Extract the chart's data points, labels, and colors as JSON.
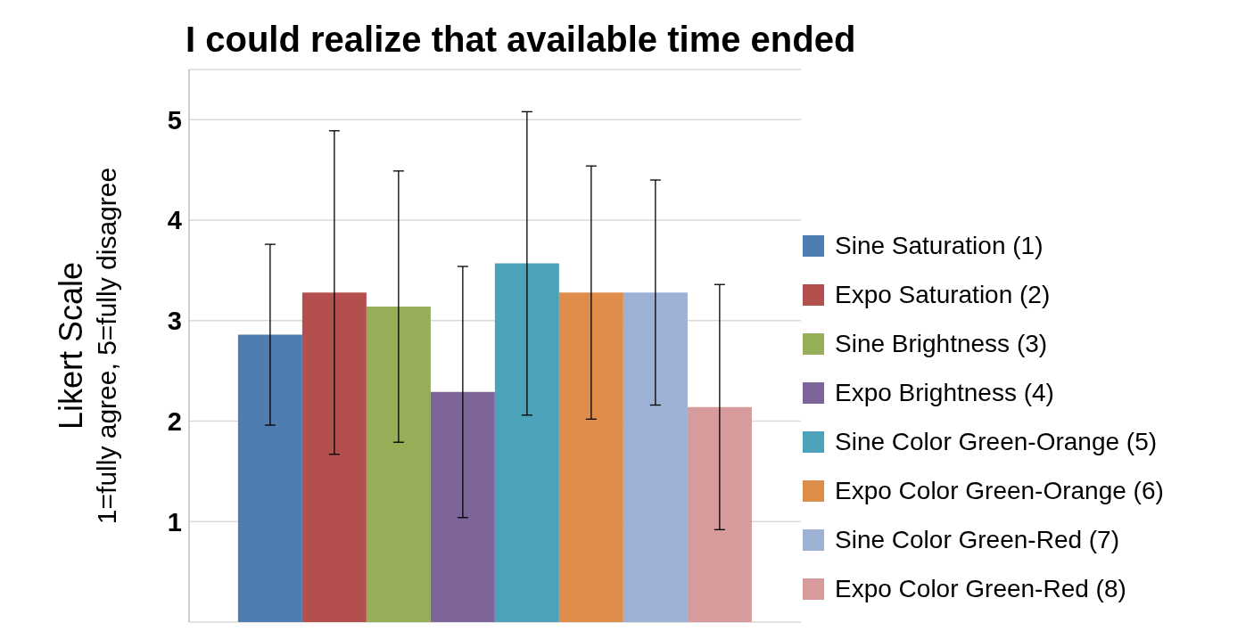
{
  "chart_data": {
    "type": "bar",
    "title": "I could realize that available time ended",
    "ylabel": "Likert Scale\n1=fully agree, 5=fully disagree",
    "categories": [
      null
    ],
    "series": [
      {
        "name": "Sine Saturation (1)",
        "color": "#4f7db0",
        "values": [
          2.86
        ],
        "errors": [
          0.9
        ]
      },
      {
        "name": "Expo Saturation (2)",
        "color": "#b3504d",
        "values": [
          3.28
        ],
        "errors": [
          1.61
        ]
      },
      {
        "name": "Sine Brightness (3)",
        "color": "#97ae58",
        "values": [
          3.14
        ],
        "errors": [
          1.35
        ]
      },
      {
        "name": "Expo Brightness (4)",
        "color": "#7d6499",
        "values": [
          2.29
        ],
        "errors": [
          1.25
        ]
      },
      {
        "name": "Sine Color Green-Orange (5)",
        "color": "#4ca2b8",
        "values": [
          3.57
        ],
        "errors": [
          1.51
        ]
      },
      {
        "name": "Expo Color Green-Orange (6)",
        "color": "#de8e4a",
        "values": [
          3.28
        ],
        "errors": [
          1.26
        ]
      },
      {
        "name": "Sine Color Green-Red (7)",
        "color": "#9db1d4",
        "values": [
          3.28
        ],
        "errors": [
          1.12
        ]
      },
      {
        "name": "Expo Color Green-Red (8)",
        "color": "#d69b9a",
        "values": [
          2.14
        ],
        "errors": [
          1.22
        ]
      }
    ],
    "ylim": [
      0,
      5.5
    ],
    "yticks": [
      1,
      2,
      3,
      4,
      5
    ],
    "grid": "y",
    "legend": "right",
    "tick_labels": "y"
  }
}
